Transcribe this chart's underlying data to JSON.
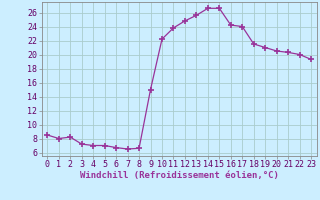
{
  "x": [
    0,
    1,
    2,
    3,
    4,
    5,
    6,
    7,
    8,
    9,
    10,
    11,
    12,
    13,
    14,
    15,
    16,
    17,
    18,
    19,
    20,
    21,
    22,
    23
  ],
  "y": [
    8.5,
    8.0,
    8.2,
    7.2,
    7.0,
    7.0,
    6.7,
    6.5,
    6.6,
    15.0,
    22.2,
    23.8,
    24.8,
    25.6,
    26.6,
    26.6,
    24.2,
    24.0,
    21.5,
    21.0,
    20.5,
    20.3,
    20.0,
    19.3
  ],
  "line_color": "#993399",
  "marker": "+",
  "marker_size": 4,
  "bg_color": "#cceeff",
  "grid_color": "#aacccc",
  "xlabel": "Windchill (Refroidissement éolien,°C)",
  "ylabel_ticks": [
    6,
    8,
    10,
    12,
    14,
    16,
    18,
    20,
    22,
    24,
    26
  ],
  "xlim": [
    -0.5,
    23.5
  ],
  "ylim": [
    5.5,
    27.5
  ],
  "label_fontsize": 6.5,
  "tick_fontsize": 6.0
}
